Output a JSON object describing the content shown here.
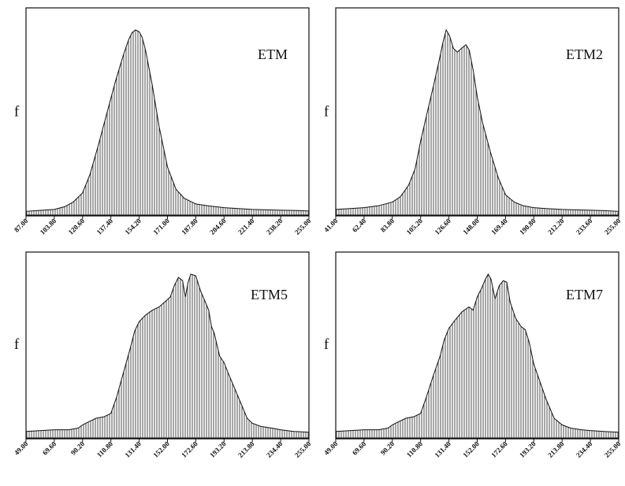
{
  "chart_data": [
    {
      "type": "area",
      "title": "ETM",
      "ylabel": "f",
      "xlabel": "",
      "xlim": [
        87.0,
        255.0
      ],
      "xticks": [
        "87.00",
        "103.80",
        "120.60",
        "137.40",
        "154.20",
        "171.00",
        "187.80",
        "204.60",
        "221.40",
        "238.20",
        "255.00"
      ],
      "grid": false,
      "x": [
        87.0,
        95.0,
        103.8,
        110.0,
        115.0,
        120.6,
        125.0,
        130.0,
        135.0,
        140.0,
        145.0,
        148.0,
        150.0,
        152.0,
        154.2,
        156.0,
        158.0,
        162.0,
        166.0,
        171.0,
        176.0,
        181.0,
        187.8,
        195.0,
        204.6,
        213.0,
        221.4,
        230.0,
        238.2,
        246.0,
        255.0
      ],
      "values": [
        0.02,
        0.025,
        0.03,
        0.045,
        0.07,
        0.12,
        0.22,
        0.38,
        0.55,
        0.72,
        0.87,
        0.95,
        0.985,
        1.0,
        0.99,
        0.96,
        0.89,
        0.7,
        0.48,
        0.26,
        0.14,
        0.09,
        0.06,
        0.05,
        0.04,
        0.035,
        0.03,
        0.028,
        0.026,
        0.025,
        0.022
      ]
    },
    {
      "type": "area",
      "title": "ETM2",
      "ylabel": "f",
      "xlabel": "",
      "xlim": [
        41.0,
        255.0
      ],
      "xticks": [
        "41.00",
        "62.40",
        "83.80",
        "105.20",
        "126.60",
        "148.00",
        "169.40",
        "190.80",
        "212.20",
        "233.60",
        "255.00"
      ],
      "grid": false,
      "x": [
        41.0,
        52.0,
        62.4,
        73.0,
        83.8,
        90.0,
        96.0,
        101.0,
        105.2,
        110.0,
        115.0,
        119.0,
        122.0,
        124.5,
        127.0,
        130.0,
        133.0,
        136.0,
        139.5,
        142.0,
        145.0,
        148.0,
        152.0,
        158.0,
        164.0,
        169.4,
        176.0,
        183.0,
        190.8,
        200.0,
        212.2,
        222.0,
        233.6,
        244.0,
        255.0
      ],
      "values": [
        0.03,
        0.035,
        0.04,
        0.05,
        0.07,
        0.1,
        0.16,
        0.25,
        0.4,
        0.55,
        0.7,
        0.83,
        0.93,
        1.0,
        0.97,
        0.9,
        0.88,
        0.9,
        0.92,
        0.89,
        0.78,
        0.64,
        0.5,
        0.34,
        0.2,
        0.11,
        0.07,
        0.05,
        0.04,
        0.035,
        0.03,
        0.028,
        0.026,
        0.024,
        0.02
      ]
    },
    {
      "type": "area",
      "title": "ETM5",
      "ylabel": "f",
      "xlabel": "",
      "xlim": [
        49.0,
        255.0
      ],
      "xticks": [
        "49.00",
        "69.60",
        "90.20",
        "110.80",
        "131.40",
        "152.00",
        "172.60",
        "193.20",
        "213.80",
        "234.40",
        "255.00"
      ],
      "grid": false,
      "x": [
        49.0,
        60.0,
        69.6,
        80.0,
        87.0,
        90.2,
        95.0,
        100.0,
        106.0,
        110.8,
        115.0,
        120.0,
        125.0,
        128.0,
        131.4,
        136.0,
        141.0,
        146.0,
        150.0,
        154.0,
        157.0,
        160.0,
        163.0,
        165.0,
        167.0,
        169.0,
        172.6,
        176.0,
        179.0,
        182.0,
        184.0,
        186.0,
        188.0,
        190.0,
        193.2,
        196.0,
        200.0,
        205.0,
        210.0,
        213.8,
        220.0,
        228.0,
        234.4,
        244.0,
        255.0
      ],
      "values": [
        0.04,
        0.045,
        0.05,
        0.05,
        0.06,
        0.08,
        0.1,
        0.12,
        0.13,
        0.15,
        0.25,
        0.4,
        0.55,
        0.65,
        0.71,
        0.75,
        0.78,
        0.8,
        0.83,
        0.86,
        0.93,
        0.98,
        0.96,
        0.86,
        0.95,
        1.0,
        0.99,
        0.9,
        0.84,
        0.78,
        0.68,
        0.64,
        0.57,
        0.5,
        0.46,
        0.4,
        0.32,
        0.22,
        0.12,
        0.09,
        0.07,
        0.06,
        0.05,
        0.04,
        0.035
      ]
    },
    {
      "type": "area",
      "title": "ETM7",
      "ylabel": "f",
      "xlabel": "",
      "xlim": [
        49.0,
        255.0
      ],
      "xticks": [
        "49.00",
        "69.60",
        "90.20",
        "110.80",
        "131.40",
        "152.00",
        "172.60",
        "193.20",
        "213.80",
        "234.40",
        "255.00"
      ],
      "grid": false,
      "x": [
        49.0,
        60.0,
        69.6,
        80.0,
        87.0,
        90.2,
        95.0,
        100.0,
        106.0,
        110.8,
        115.0,
        120.0,
        125.0,
        128.0,
        131.4,
        136.0,
        141.0,
        146.0,
        149.0,
        152.0,
        155.0,
        158.0,
        160.0,
        162.0,
        165.0,
        168.0,
        171.0,
        173.5,
        176.0,
        180.0,
        184.0,
        187.0,
        190.0,
        193.2,
        197.0,
        202.0,
        208.0,
        213.8,
        220.0,
        228.0,
        234.4,
        244.0,
        255.0
      ],
      "values": [
        0.04,
        0.045,
        0.05,
        0.05,
        0.06,
        0.08,
        0.1,
        0.12,
        0.13,
        0.15,
        0.25,
        0.38,
        0.5,
        0.6,
        0.67,
        0.72,
        0.77,
        0.8,
        0.78,
        0.86,
        0.91,
        0.97,
        1.0,
        0.97,
        0.85,
        0.93,
        0.96,
        0.95,
        0.83,
        0.73,
        0.68,
        0.66,
        0.58,
        0.45,
        0.36,
        0.24,
        0.12,
        0.08,
        0.06,
        0.05,
        0.045,
        0.04,
        0.035
      ]
    }
  ]
}
